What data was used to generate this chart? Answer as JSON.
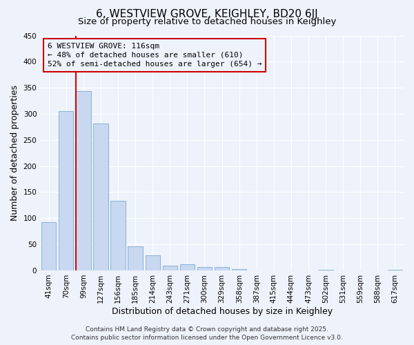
{
  "title": "6, WESTVIEW GROVE, KEIGHLEY, BD20 6JJ",
  "subtitle": "Size of property relative to detached houses in Keighley",
  "xlabel": "Distribution of detached houses by size in Keighley",
  "ylabel": "Number of detached properties",
  "categories": [
    "41sqm",
    "70sqm",
    "99sqm",
    "127sqm",
    "156sqm",
    "185sqm",
    "214sqm",
    "243sqm",
    "271sqm",
    "300sqm",
    "329sqm",
    "358sqm",
    "387sqm",
    "415sqm",
    "444sqm",
    "473sqm",
    "502sqm",
    "531sqm",
    "559sqm",
    "588sqm",
    "617sqm"
  ],
  "values": [
    93,
    305,
    344,
    282,
    133,
    46,
    29,
    9,
    12,
    7,
    6,
    2,
    0,
    0,
    0,
    0,
    1,
    0,
    0,
    0,
    1
  ],
  "bar_color": "#c8d8f0",
  "bar_edge_color": "#7aaad4",
  "vline_color": "#dd0000",
  "annotation_title": "6 WESTVIEW GROVE: 116sqm",
  "annotation_line1": "← 48% of detached houses are smaller (610)",
  "annotation_line2": "52% of semi-detached houses are larger (654) →",
  "annotation_box_edge_color": "#cc0000",
  "ylim": [
    0,
    450
  ],
  "yticks": [
    0,
    50,
    100,
    150,
    200,
    250,
    300,
    350,
    400,
    450
  ],
  "footer1": "Contains HM Land Registry data © Crown copyright and database right 2025.",
  "footer2": "Contains public sector information licensed under the Open Government Licence v3.0.",
  "bg_color": "#eef2fa",
  "grid_color": "#ffffff",
  "title_fontsize": 11,
  "subtitle_fontsize": 9.5,
  "axis_label_fontsize": 9,
  "tick_fontsize": 7.5,
  "annotation_fontsize": 8,
  "footer_fontsize": 6.5
}
